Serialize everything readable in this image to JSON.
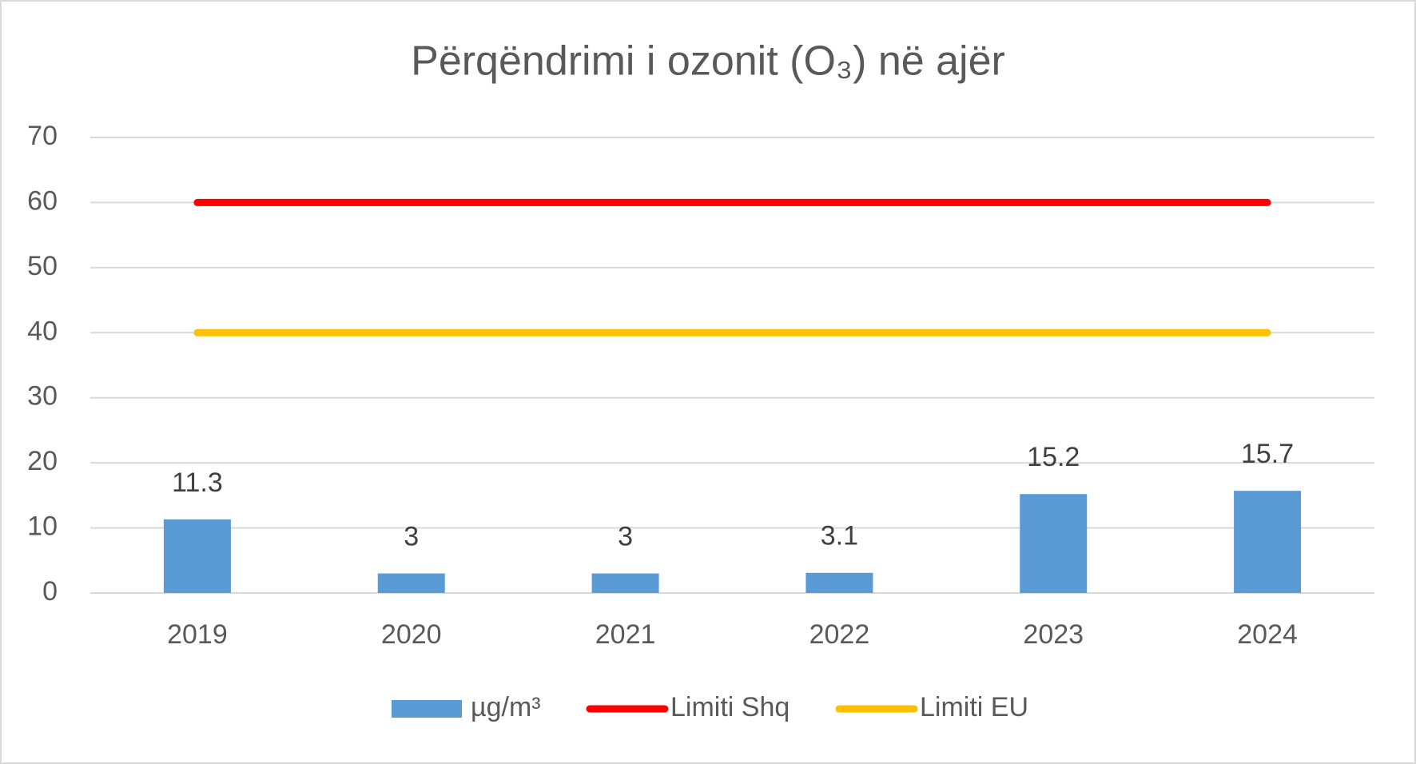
{
  "chart_data": {
    "type": "bar",
    "title": "Përqëndrimi i ozonit (O₃) në ajër",
    "categories": [
      "2019",
      "2020",
      "2021",
      "2022",
      "2023",
      "2024"
    ],
    "series": [
      {
        "name": "µg/m³",
        "type": "bar",
        "color": "#5b9bd5",
        "values": [
          11.3,
          3,
          3,
          3.1,
          15.2,
          15.7
        ]
      },
      {
        "name": "Limiti Shq",
        "type": "line",
        "color": "#ff0000",
        "values": [
          60,
          60,
          60,
          60,
          60,
          60
        ]
      },
      {
        "name": "Limiti EU",
        "type": "line",
        "color": "#ffc000",
        "values": [
          40,
          40,
          40,
          40,
          40,
          40
        ]
      }
    ],
    "ylim": [
      0,
      70
    ],
    "yticks": [
      0,
      10,
      20,
      30,
      40,
      50,
      60,
      70
    ],
    "grid": true,
    "legend": "bottom"
  }
}
